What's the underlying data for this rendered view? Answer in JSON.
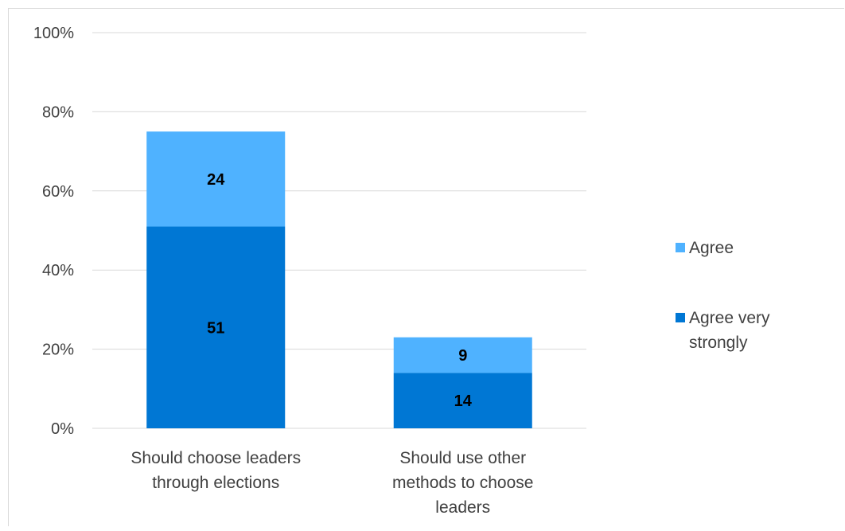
{
  "chart_data": {
    "type": "bar",
    "stacked": true,
    "title": "",
    "xlabel": "",
    "ylabel": "",
    "ylim": [
      0,
      100
    ],
    "y_ticks": [
      "0%",
      "20%",
      "40%",
      "60%",
      "80%",
      "100%"
    ],
    "y_tick_values": [
      0,
      20,
      40,
      60,
      80,
      100
    ],
    "grid": true,
    "legend_position": "right",
    "categories": [
      [
        "Should choose leaders",
        "through elections"
      ],
      [
        "Should use other",
        "methods to choose",
        "leaders"
      ]
    ],
    "series": [
      {
        "name": "Agree very strongly",
        "values": [
          51,
          14
        ],
        "labels": [
          "51",
          "14"
        ],
        "color": "#0077d4"
      },
      {
        "name": "Agree",
        "values": [
          24,
          9
        ],
        "labels": [
          "24",
          "9"
        ],
        "color": "#4fb2ff"
      }
    ],
    "legend_order": [
      "Agree",
      "Agree very strongly"
    ],
    "legend_labels": [
      [
        "Agree"
      ],
      [
        "Agree very",
        "strongly"
      ]
    ]
  }
}
